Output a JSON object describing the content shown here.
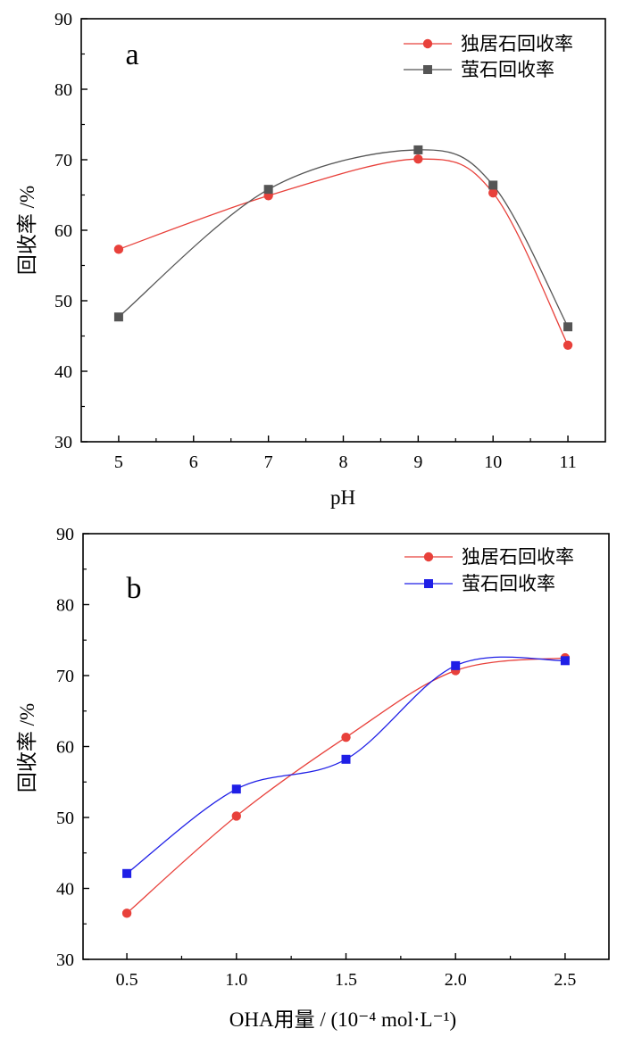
{
  "chart_data": [
    {
      "type": "line",
      "panel_label": "a",
      "xlabel": "pH",
      "ylabel": "回收率 /%",
      "xlim": [
        4.5,
        11.5
      ],
      "ylim": [
        30,
        90
      ],
      "xticks": [
        5,
        6,
        7,
        8,
        9,
        10,
        11
      ],
      "yticks": [
        30,
        40,
        50,
        60,
        70,
        80,
        90
      ],
      "legend_position": "top-right",
      "grid": false,
      "smooth": true,
      "series": [
        {
          "name": "独居石回收率",
          "color": "#e8413b",
          "marker": "circle",
          "x": [
            5,
            7,
            9,
            10,
            11
          ],
          "y": [
            57.3,
            64.9,
            70.1,
            65.3,
            43.7
          ]
        },
        {
          "name": "萤石回收率",
          "color": "#555555",
          "marker": "square",
          "x": [
            5,
            7,
            9,
            10,
            11
          ],
          "y": [
            47.7,
            65.8,
            71.4,
            66.4,
            46.3
          ]
        }
      ]
    },
    {
      "type": "line",
      "panel_label": "b",
      "xlabel": "OHA用量 / (10⁻⁴ mol·L⁻¹)",
      "ylabel": "回收率 /%",
      "xlim": [
        0.3,
        2.7
      ],
      "ylim": [
        30,
        90
      ],
      "xticks": [
        "0.5",
        "1.0",
        "1.5",
        "2.0",
        "2.5"
      ],
      "yticks": [
        30,
        40,
        50,
        60,
        70,
        80,
        90
      ],
      "legend_position": "top-right",
      "grid": false,
      "smooth": true,
      "series": [
        {
          "name": "独居石回收率",
          "color": "#e8413b",
          "marker": "circle",
          "x": [
            0.5,
            1.0,
            1.5,
            2.0,
            2.5
          ],
          "y": [
            36.5,
            50.2,
            61.3,
            70.7,
            72.5
          ]
        },
        {
          "name": "萤石回收率",
          "color": "#1f1fe6",
          "marker": "square",
          "x": [
            0.5,
            1.0,
            1.5,
            2.0,
            2.5
          ],
          "y": [
            42.1,
            54.0,
            58.2,
            71.4,
            72.1
          ]
        }
      ]
    }
  ]
}
